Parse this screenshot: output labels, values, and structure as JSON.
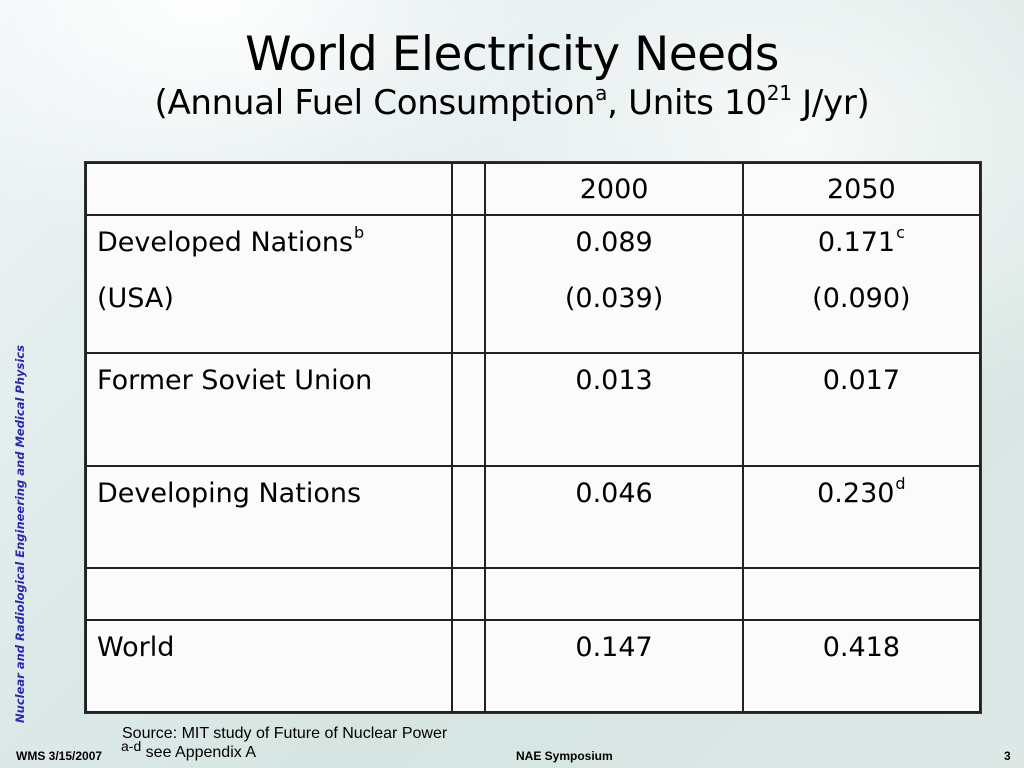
{
  "title": {
    "main": "World Electricity Needs",
    "sub_before": "(Annual Fuel Consumption",
    "sub_sup_a": "a",
    "sub_mid": ", Units 10",
    "sub_sup_exp": "21",
    "sub_after": " J/yr)"
  },
  "side_label": "Nuclear and Radiological Engineering and Medical Physics",
  "table": {
    "headers": [
      "",
      "",
      "2000",
      "2050"
    ],
    "rows": [
      {
        "label": "Developed Nations",
        "label_sup": "b",
        "label2": "(USA)",
        "v2000": "0.089",
        "v2000_b": "(0.039)",
        "v2050": "0.171",
        "v2050_sup": "c",
        "v2050_b": "(0.090)"
      },
      {
        "label": "Former Soviet Union",
        "v2000": "0.013",
        "v2050": "0.017"
      },
      {
        "label": "Developing Nations",
        "v2000": "0.046",
        "v2050": "0.230",
        "v2050_sup": "d"
      },
      {
        "label": "",
        "v2000": "",
        "v2050": ""
      },
      {
        "label": "World",
        "v2000": "0.147",
        "v2050": "0.418"
      }
    ]
  },
  "notes": {
    "source": "Source: MIT study of Future of Nuclear Power",
    "appendix_sup": "a-d",
    "appendix": " see Appendix A"
  },
  "footer": {
    "left": "WMS 3/15/2007",
    "center": "NAE Symposium",
    "page": "3"
  }
}
